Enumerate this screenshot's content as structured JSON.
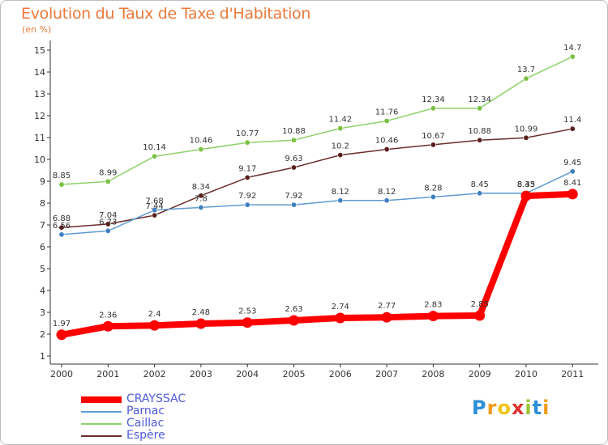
{
  "title": "Evolution du Taux de Taxe d'Habitation",
  "subtitle": "(en %)",
  "logo": {
    "letters": [
      "P",
      "r",
      "o",
      "x",
      "i",
      "t",
      "i"
    ],
    "colors": [
      "#2b8fd8",
      "#f29a1f",
      "#f0c419",
      "#e03030",
      "#9ac435",
      "#2b8fd8",
      "#f29a1f"
    ]
  },
  "chart_data": {
    "type": "line",
    "x": [
      "2000",
      "2001",
      "2002",
      "2003",
      "2004",
      "2005",
      "2006",
      "2007",
      "2008",
      "2009",
      "2010",
      "2011"
    ],
    "ylim": [
      1,
      15
    ],
    "yticks": [
      "1",
      "2",
      "3",
      "4",
      "5",
      "6",
      "7",
      "8",
      "9",
      "10",
      "11",
      "12",
      "13",
      "14",
      "15"
    ],
    "grid": false,
    "legend_position": "bottom-left",
    "series": [
      {
        "name": "Caillac",
        "color": "#8fd16a",
        "point_color": "#7bc043",
        "width": 1.5,
        "values": [
          8.85,
          8.99,
          10.14,
          10.46,
          10.77,
          10.88,
          11.42,
          11.76,
          12.34,
          12.34,
          13.7,
          14.7
        ],
        "labels": [
          "8.85",
          "8.99",
          "10.14",
          "10.46",
          "10.77",
          "10.88",
          "11.42",
          "11.76",
          "12.34",
          "12.34",
          "13.7",
          "14.7"
        ]
      },
      {
        "name": "Espère",
        "color": "#6b2c2c",
        "point_color": "#5a1f1f",
        "width": 1.5,
        "values": [
          6.88,
          7.04,
          7.44,
          8.34,
          9.17,
          9.63,
          10.2,
          10.46,
          10.67,
          10.88,
          10.99,
          11.4
        ],
        "labels": [
          "6.88",
          "7.04",
          "7.44",
          "8.34",
          "9.17",
          "9.63",
          "10.2",
          "10.46",
          "10.67",
          "10.88",
          "10.99",
          "11.4"
        ]
      },
      {
        "name": "Parnac",
        "color": "#5f9bd1",
        "point_color": "#3f7fc0",
        "width": 1.5,
        "values": [
          6.56,
          6.73,
          7.68,
          7.8,
          7.92,
          7.92,
          8.12,
          8.12,
          8.28,
          8.45,
          8.45,
          9.45
        ],
        "labels": [
          "6.56",
          "6.73",
          "7.68",
          "7.8",
          "7.92",
          "7.92",
          "8.12",
          "8.12",
          "8.28",
          "8.45",
          "8.45",
          "9.45"
        ]
      },
      {
        "name": "CRAYSSAC",
        "color": "#ff0000",
        "point_color": "#ff0000",
        "width": 8,
        "values": [
          1.97,
          2.36,
          2.4,
          2.48,
          2.53,
          2.63,
          2.74,
          2.77,
          2.83,
          2.85,
          8.33,
          8.41
        ],
        "labels": [
          "1.97",
          "2.36",
          "2.4",
          "2.48",
          "2.53",
          "2.63",
          "2.74",
          "2.77",
          "2.83",
          "2.85",
          "8.33",
          "8.41"
        ]
      }
    ],
    "legend": [
      {
        "name": "CRAYSSAC",
        "color": "#ff0000",
        "width": 8
      },
      {
        "name": "Parnac",
        "color": "#5f9bd1",
        "width": 2
      },
      {
        "name": "Caillac",
        "color": "#8fd16a",
        "width": 2
      },
      {
        "name": "Espère",
        "color": "#6b2c2c",
        "width": 2
      }
    ]
  }
}
